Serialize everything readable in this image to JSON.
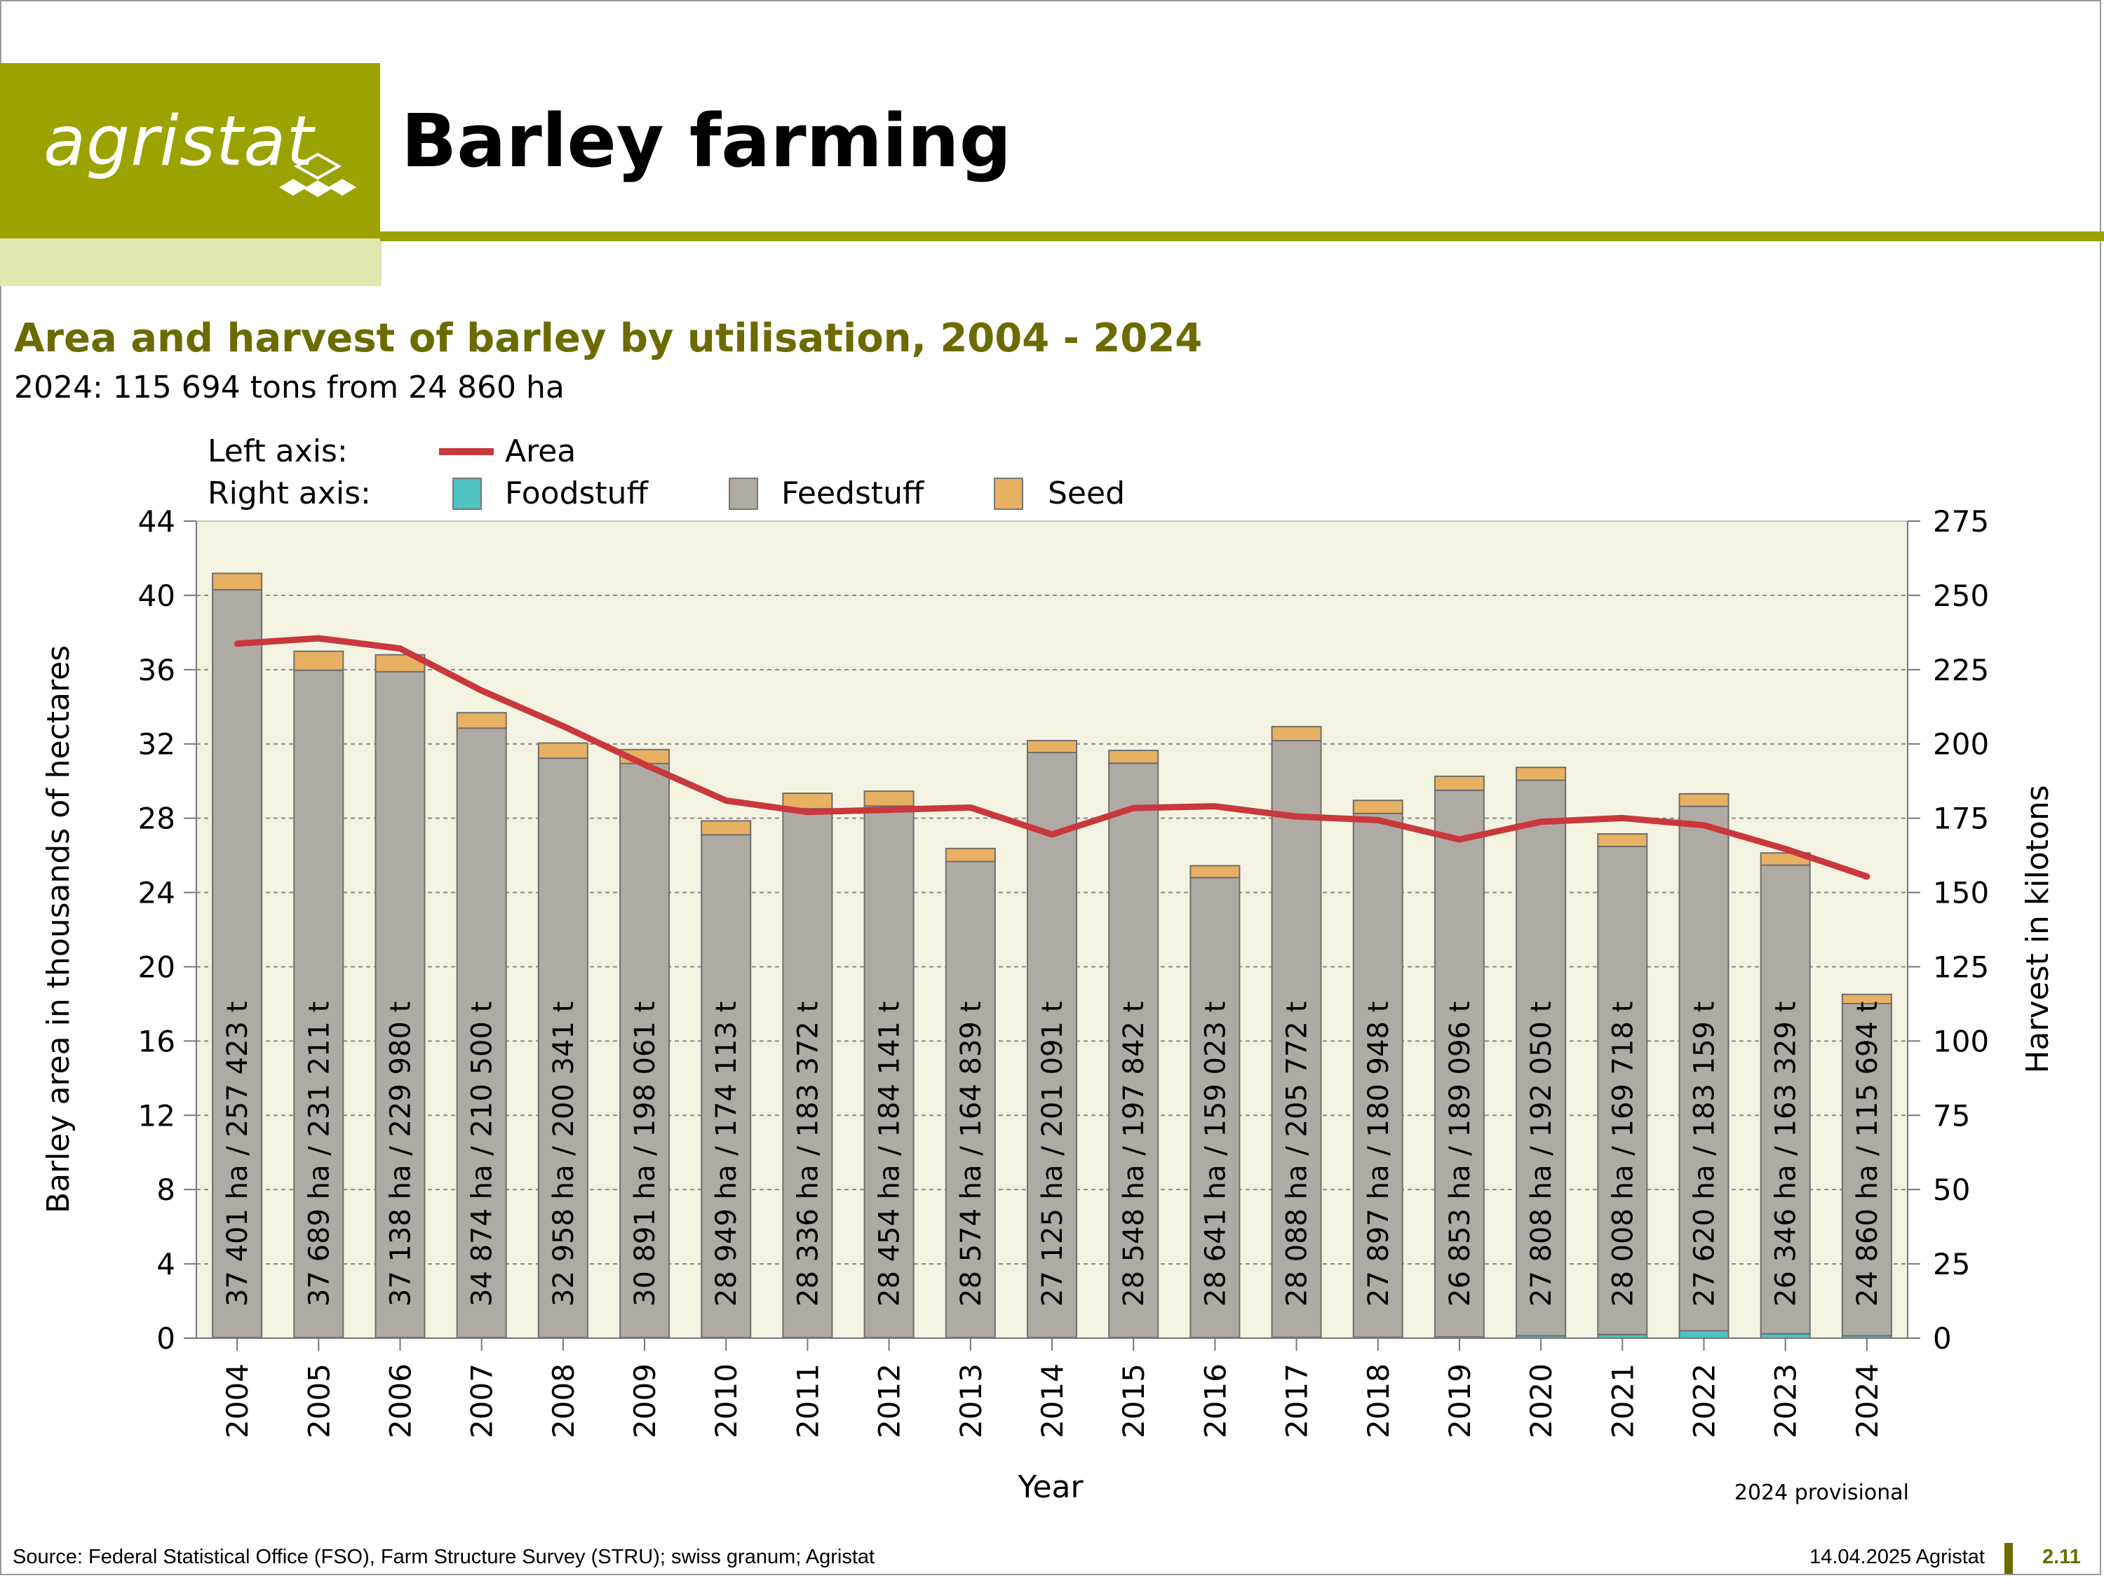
{
  "logo": {
    "text": "agristat"
  },
  "header": {
    "title": "Barley farming"
  },
  "footer": {
    "source": "Source: Federal Statistical Office (FSO), Farm Structure Survey (STRU); swiss granum; Agristat",
    "date": "14.04.2025 Agristat",
    "page": "2.11"
  },
  "colors": {
    "brand": "#9aa300",
    "title": "#6b6b00",
    "plot_bg": "#f4f3e2",
    "area_line": "#c8383c",
    "foodstuff": "#4fc1c1",
    "feedstuff": "#b0aaa5",
    "seed": "#e8b062"
  },
  "chart_data": {
    "type": "bar",
    "title": "Area and harvest of barley by utilisation, 2004 - 2024",
    "subtitle": "2024: 115 694 tons from 24 860 ha",
    "xlabel": "Year",
    "ylabel_left": "Barley area in thousands of hectares",
    "ylabel_right": "Harvest in kilotons",
    "ylim_left": [
      0,
      44
    ],
    "ylim_right": [
      0,
      275
    ],
    "yticks_left": [
      "0",
      "4",
      "8",
      "12",
      "16",
      "20",
      "24",
      "28",
      "32",
      "36",
      "40",
      "44"
    ],
    "yticks_right": [
      "0",
      "25",
      "50",
      "75",
      "100",
      "125",
      "150",
      "175",
      "200",
      "225",
      "250",
      "275"
    ],
    "legend": {
      "left_label": "Left axis:",
      "right_label": "Right axis:",
      "area": "Area",
      "foodstuff": "Foodstuff",
      "feedstuff": "Feedstuff",
      "seed": "Seed"
    },
    "note": "2024 provisional",
    "categories": [
      "2004",
      "2005",
      "2006",
      "2007",
      "2008",
      "2009",
      "2010",
      "2011",
      "2012",
      "2013",
      "2014",
      "2015",
      "2016",
      "2017",
      "2018",
      "2019",
      "2020",
      "2021",
      "2022",
      "2023",
      "2024"
    ],
    "series": [
      {
        "name": "Foodstuff",
        "axis": "right",
        "values": [
          0.2,
          0.2,
          0.2,
          0.2,
          0.2,
          0.2,
          0.2,
          0.2,
          0.2,
          0.2,
          0.2,
          0.2,
          0.2,
          0.3,
          0.3,
          0.4,
          0.8,
          1.2,
          2.5,
          1.5,
          0.8
        ]
      },
      {
        "name": "Feedstuff",
        "axis": "right",
        "values": [
          251.7,
          224.6,
          224.1,
          205.1,
          195.0,
          193.2,
          169.2,
          178.0,
          178.9,
          160.2,
          196.9,
          193.3,
          154.8,
          200.8,
          176.3,
          184.0,
          187.0,
          164.3,
          176.5,
          157.7,
          111.8
        ]
      },
      {
        "name": "Seed",
        "axis": "right",
        "values": [
          5.5,
          6.4,
          5.7,
          5.2,
          5.1,
          4.7,
          4.7,
          5.2,
          5.0,
          4.4,
          4.0,
          4.3,
          4.0,
          4.7,
          4.4,
          4.7,
          4.3,
          4.2,
          4.2,
          4.1,
          3.1
        ]
      },
      {
        "name": "Area",
        "axis": "left",
        "type": "line",
        "values": [
          37.401,
          37.689,
          37.138,
          34.874,
          32.958,
          30.891,
          28.949,
          28.336,
          28.454,
          28.574,
          27.125,
          28.548,
          28.641,
          28.088,
          27.897,
          26.853,
          27.808,
          28.008,
          27.62,
          26.346,
          24.86
        ]
      }
    ],
    "bar_labels": [
      "37 401 ha / 257 423 t",
      "37 689 ha / 231 211 t",
      "37 138 ha / 229 980 t",
      "34 874 ha / 210 500 t",
      "32 958 ha / 200 341 t",
      "30 891 ha / 198 061 t",
      "28 949 ha / 174 113 t",
      "28 336 ha / 183 372 t",
      "28 454 ha / 184 141 t",
      "28 574 ha / 164 839 t",
      "27 125 ha / 201 091 t",
      "28 548 ha / 197 842 t",
      "28 641 ha / 159 023 t",
      "28 088 ha / 205 772 t",
      "27 897 ha / 180 948 t",
      "26 853 ha / 189 096 t",
      "27 808 ha / 192 050 t",
      "28 008 ha / 169 718 t",
      "27 620 ha / 183 159 t",
      "26 346 ha / 163 329 t",
      "24 860 ha / 115 694 t"
    ]
  }
}
